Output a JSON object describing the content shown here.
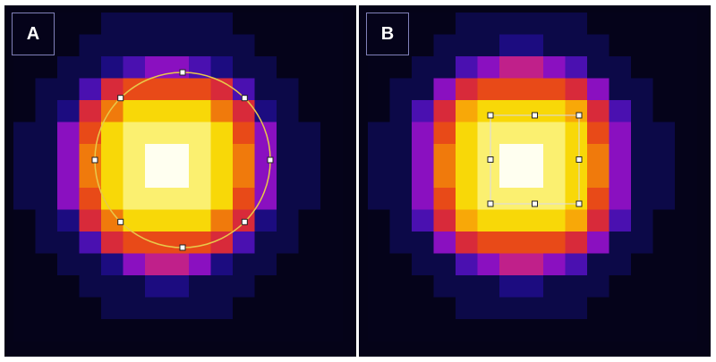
{
  "panels": [
    {
      "id": "a",
      "label": "A",
      "roi_shape": "ellipse",
      "roi_color": "#e8c84a",
      "heatmap": [
        [
          0,
          0,
          0,
          0,
          1,
          1,
          1,
          1,
          1,
          1,
          0,
          0,
          0,
          0,
          0
        ],
        [
          0,
          0,
          0,
          1,
          1,
          1,
          1,
          1,
          1,
          1,
          1,
          0,
          0,
          0,
          0
        ],
        [
          0,
          0,
          1,
          1,
          2,
          3,
          4,
          4,
          3,
          2,
          1,
          1,
          0,
          0,
          0
        ],
        [
          0,
          1,
          1,
          3,
          6,
          7,
          7,
          7,
          7,
          6,
          3,
          1,
          1,
          0,
          0
        ],
        [
          0,
          1,
          2,
          6,
          8,
          10,
          10,
          10,
          10,
          8,
          6,
          2,
          1,
          0,
          0
        ],
        [
          1,
          1,
          4,
          7,
          10,
          11,
          11,
          11,
          11,
          10,
          7,
          4,
          1,
          1,
          0
        ],
        [
          1,
          1,
          4,
          8,
          10,
          11,
          12,
          12,
          11,
          10,
          8,
          4,
          1,
          1,
          0
        ],
        [
          1,
          1,
          4,
          8,
          10,
          11,
          12,
          12,
          11,
          10,
          8,
          4,
          1,
          1,
          0
        ],
        [
          1,
          1,
          4,
          7,
          10,
          11,
          11,
          11,
          11,
          10,
          7,
          4,
          1,
          1,
          0
        ],
        [
          0,
          1,
          2,
          6,
          8,
          10,
          10,
          10,
          10,
          8,
          6,
          2,
          1,
          0,
          0
        ],
        [
          0,
          1,
          1,
          3,
          6,
          7,
          7,
          7,
          7,
          6,
          3,
          1,
          1,
          0,
          0
        ],
        [
          0,
          0,
          1,
          1,
          2,
          4,
          5,
          5,
          4,
          2,
          1,
          1,
          0,
          0,
          0
        ],
        [
          0,
          0,
          0,
          1,
          1,
          1,
          2,
          2,
          1,
          1,
          1,
          0,
          0,
          0,
          0
        ],
        [
          0,
          0,
          0,
          0,
          1,
          1,
          1,
          1,
          1,
          1,
          0,
          0,
          0,
          0,
          0
        ],
        [
          0,
          0,
          0,
          0,
          0,
          0,
          0,
          0,
          0,
          0,
          0,
          0,
          0,
          0,
          0
        ]
      ]
    },
    {
      "id": "b",
      "label": "B",
      "roi_shape": "rectangle",
      "roi_color": "#d8d8ec",
      "heatmap": [
        [
          0,
          0,
          0,
          0,
          1,
          1,
          1,
          1,
          1,
          1,
          0,
          0,
          0,
          0,
          0
        ],
        [
          0,
          0,
          0,
          1,
          1,
          1,
          2,
          2,
          1,
          1,
          1,
          0,
          0,
          0,
          0
        ],
        [
          0,
          0,
          1,
          1,
          3,
          4,
          5,
          5,
          4,
          3,
          1,
          1,
          0,
          0,
          0
        ],
        [
          0,
          1,
          1,
          4,
          6,
          7,
          7,
          7,
          7,
          6,
          4,
          1,
          1,
          0,
          0
        ],
        [
          0,
          1,
          3,
          6,
          9,
          10,
          10,
          10,
          10,
          9,
          6,
          3,
          1,
          0,
          0
        ],
        [
          1,
          1,
          4,
          7,
          10,
          11,
          11,
          11,
          11,
          10,
          7,
          4,
          1,
          1,
          0
        ],
        [
          1,
          1,
          4,
          8,
          10,
          11,
          12,
          12,
          11,
          10,
          8,
          4,
          1,
          1,
          0
        ],
        [
          1,
          1,
          4,
          8,
          10,
          11,
          12,
          12,
          11,
          10,
          8,
          4,
          1,
          1,
          0
        ],
        [
          1,
          1,
          4,
          7,
          10,
          11,
          11,
          11,
          11,
          10,
          7,
          4,
          1,
          1,
          0
        ],
        [
          0,
          1,
          3,
          6,
          9,
          10,
          10,
          10,
          10,
          9,
          6,
          3,
          1,
          0,
          0
        ],
        [
          0,
          1,
          1,
          4,
          6,
          7,
          7,
          7,
          7,
          6,
          4,
          1,
          1,
          0,
          0
        ],
        [
          0,
          0,
          1,
          1,
          3,
          4,
          5,
          5,
          4,
          3,
          1,
          1,
          0,
          0,
          0
        ],
        [
          0,
          0,
          0,
          1,
          1,
          1,
          2,
          2,
          1,
          1,
          1,
          0,
          0,
          0,
          0
        ],
        [
          0,
          0,
          0,
          0,
          1,
          1,
          1,
          1,
          1,
          1,
          0,
          0,
          0,
          0,
          0
        ],
        [
          0,
          0,
          0,
          0,
          0,
          0,
          0,
          0,
          0,
          0,
          0,
          0,
          0,
          0,
          0
        ]
      ]
    }
  ],
  "palette": [
    "#05031a",
    "#0c0948",
    "#1c0c80",
    "#4a10b0",
    "#8a10c0",
    "#c0208a",
    "#d82a3a",
    "#e84a18",
    "#f07a0c",
    "#f8a808",
    "#f8d808",
    "#fbf070",
    "#fffff0"
  ]
}
